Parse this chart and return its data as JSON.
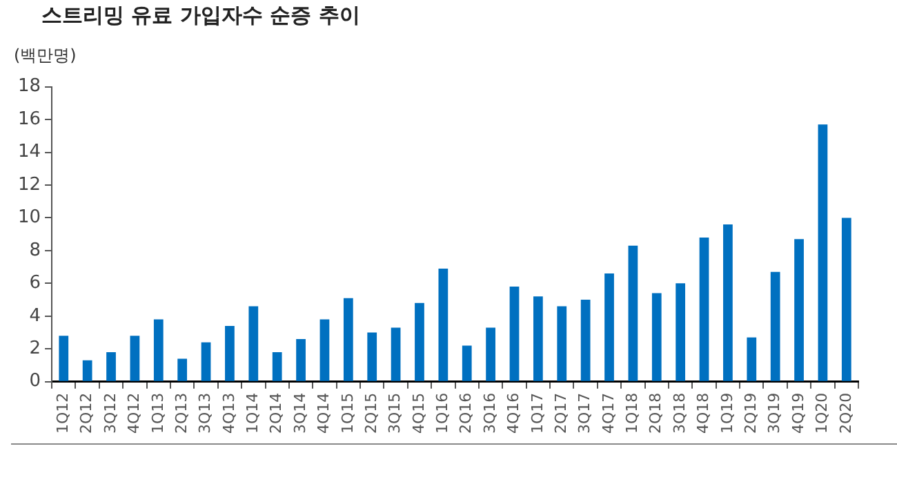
{
  "chart_data": {
    "type": "bar",
    "title": "스트리밍 유료 가입자수 순증 추이",
    "ylabel": "(백만명)",
    "categories": [
      "1Q12",
      "2Q12",
      "3Q12",
      "4Q12",
      "1Q13",
      "2Q13",
      "3Q13",
      "4Q13",
      "1Q14",
      "2Q14",
      "3Q14",
      "4Q14",
      "1Q15",
      "2Q15",
      "3Q15",
      "4Q15",
      "1Q16",
      "2Q16",
      "3Q16",
      "4Q16",
      "1Q17",
      "2Q17",
      "3Q17",
      "4Q17",
      "1Q18",
      "2Q18",
      "3Q18",
      "4Q18",
      "1Q19",
      "2Q19",
      "3Q19",
      "4Q19",
      "1Q20",
      "2Q20"
    ],
    "values": [
      2.8,
      1.3,
      1.8,
      2.8,
      3.8,
      1.4,
      2.4,
      3.4,
      4.6,
      1.8,
      2.6,
      3.8,
      5.1,
      3.0,
      3.3,
      4.8,
      6.9,
      2.2,
      3.3,
      5.8,
      5.2,
      4.6,
      5.0,
      6.6,
      8.3,
      5.4,
      6.0,
      8.8,
      9.6,
      2.7,
      6.7,
      8.7,
      15.7,
      10.0
    ],
    "color": "#0070c0",
    "ylim": [
      0,
      18
    ],
    "yticks": [
      0,
      2,
      4,
      6,
      8,
      10,
      12,
      14,
      16,
      18
    ],
    "grid": false,
    "legend": false
  }
}
